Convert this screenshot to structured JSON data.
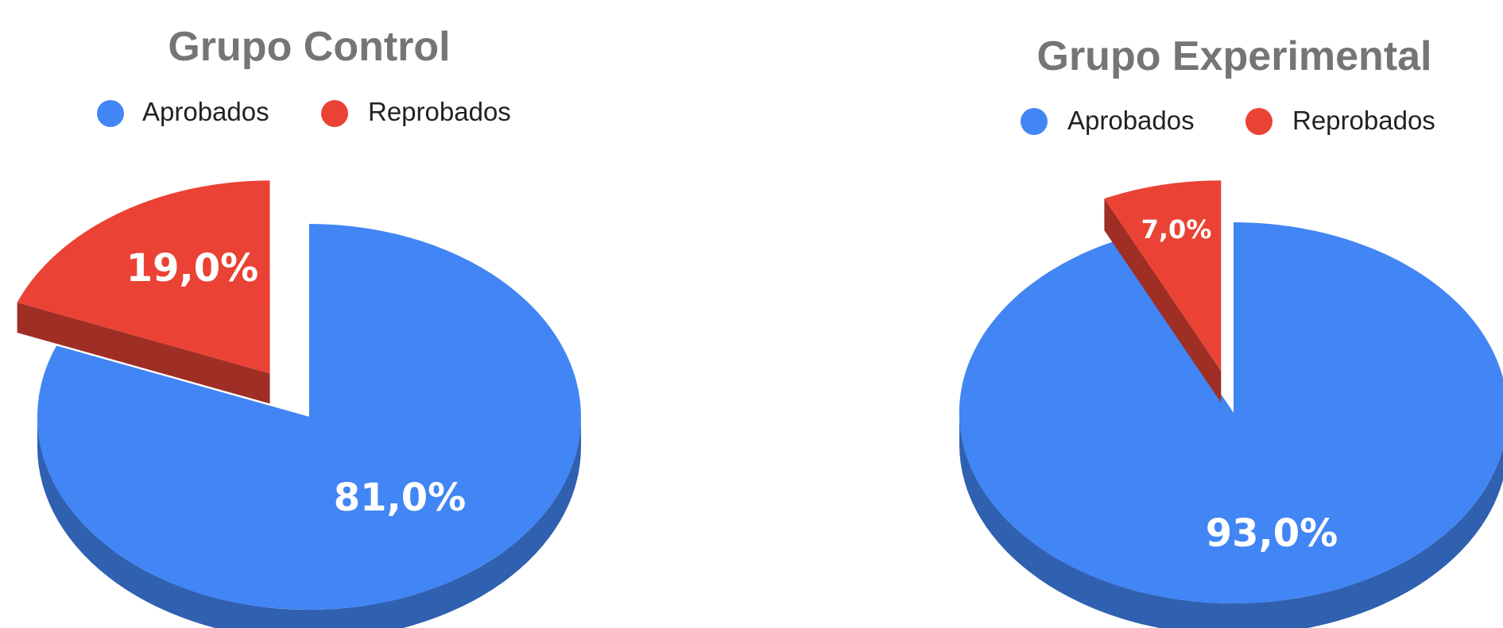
{
  "chart_data": [
    {
      "type": "pie",
      "title": "Grupo Control",
      "categories": [
        "Aprobados",
        "Reprobados"
      ],
      "values": [
        81.0,
        19.0
      ],
      "labels": [
        "81,0%",
        "19,0%"
      ],
      "colors": [
        "#4285f4",
        "#ea4335"
      ],
      "exploded": "Reprobados",
      "style": "3d",
      "legend": "top"
    },
    {
      "type": "pie",
      "title": "Grupo Experimental",
      "categories": [
        "Aprobados",
        "Reprobados"
      ],
      "values": [
        93.0,
        7.0
      ],
      "labels": [
        "93,0%",
        "7,0%"
      ],
      "colors": [
        "#4285f4",
        "#ea4335"
      ],
      "exploded": "Reprobados",
      "style": "3d",
      "legend": "top"
    }
  ]
}
